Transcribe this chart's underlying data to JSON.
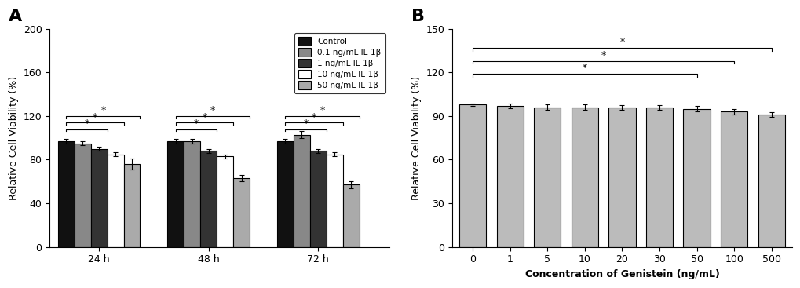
{
  "panel_A": {
    "groups": [
      "24 h",
      "48 h",
      "72 h"
    ],
    "series": [
      {
        "label": "Control",
        "color": "#111111",
        "values": [
          97,
          97,
          97
        ],
        "errors": [
          2,
          2,
          2
        ]
      },
      {
        "label": "0.1 ng/mL IL-1β",
        "color": "#888888",
        "values": [
          95,
          97,
          103
        ],
        "errors": [
          2,
          2,
          3
        ]
      },
      {
        "label": "1 ng/mL IL-1β",
        "color": "#333333",
        "values": [
          90,
          88,
          88
        ],
        "errors": [
          2,
          2,
          2
        ]
      },
      {
        "label": "10 ng/mL IL-1β",
        "color": "#ffffff",
        "values": [
          85,
          83,
          85
        ],
        "errors": [
          2,
          2,
          2
        ]
      },
      {
        "label": "50 ng/mL IL-1β",
        "color": "#aaaaaa",
        "values": [
          76,
          63,
          57
        ],
        "errors": [
          5,
          3,
          3
        ]
      }
    ],
    "ylim": [
      0,
      200
    ],
    "yticks": [
      0,
      40,
      80,
      120,
      160,
      200
    ],
    "ylabel": "Relative Cell Viability (%)",
    "bar_width": 0.15
  },
  "panel_B": {
    "categories": [
      "0",
      "1",
      "5",
      "10",
      "20",
      "30",
      "50",
      "100",
      "500"
    ],
    "values": [
      98,
      97,
      96,
      96,
      96,
      96,
      95,
      93,
      91
    ],
    "errors": [
      0.8,
      1.5,
      2,
      2,
      1.5,
      1.5,
      2,
      2,
      1.5
    ],
    "bar_color": "#bbbbbb",
    "ylim": [
      0,
      150
    ],
    "yticks": [
      0,
      30,
      60,
      90,
      120,
      150
    ],
    "ylabel": "Relative Cell Viability (%)",
    "xlabel": "Concentration of Genistein (ng/mL)"
  }
}
